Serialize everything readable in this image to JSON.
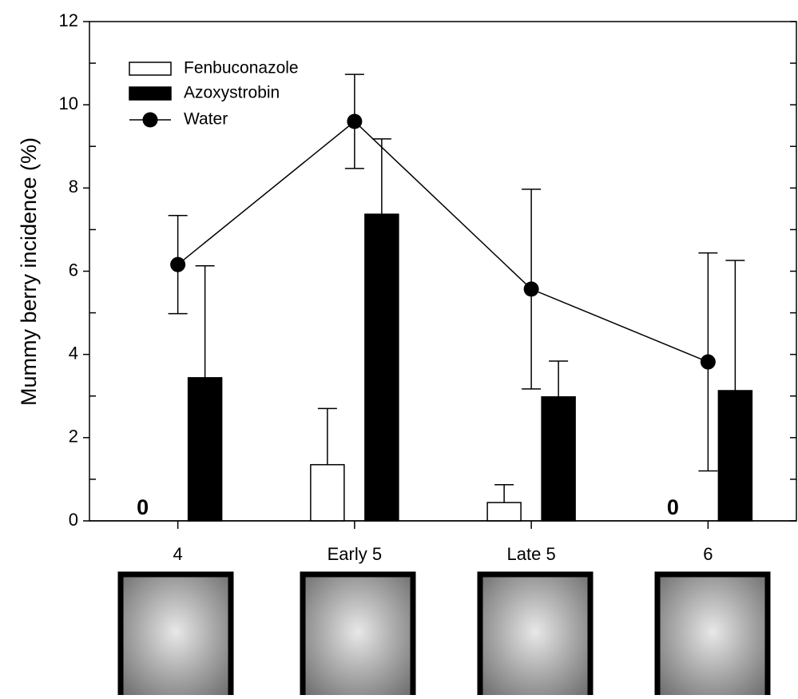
{
  "chart_data": {
    "type": "bar",
    "y_label": "Mummy berry incidence (%)",
    "categories": [
      "4",
      "Early 5",
      "Late 5",
      "6"
    ],
    "series": [
      {
        "name": "Fenbuconazole",
        "color": "#ffffff",
        "values": [
          0,
          1.35,
          0.44,
          0
        ],
        "errors": [
          null,
          1.35,
          0.43,
          null
        ],
        "value_labels": [
          "0",
          null,
          null,
          "0"
        ]
      },
      {
        "name": "Azoxystrobin",
        "color": "#000000",
        "values": [
          3.44,
          7.37,
          2.98,
          3.13
        ],
        "errors": [
          2.69,
          1.81,
          0.86,
          3.13
        ]
      },
      {
        "name": "Water",
        "type": "line",
        "color": "#000000",
        "values": [
          6.16,
          9.6,
          5.57,
          3.82
        ],
        "errors": [
          1.18,
          1.13,
          2.4,
          2.62
        ]
      }
    ],
    "ylim": [
      0,
      12
    ],
    "yticks": [
      0,
      2,
      4,
      6,
      8,
      10,
      12
    ],
    "minor_yticks": [
      1,
      3,
      5,
      7,
      9,
      11
    ],
    "legend": "upper-left"
  }
}
